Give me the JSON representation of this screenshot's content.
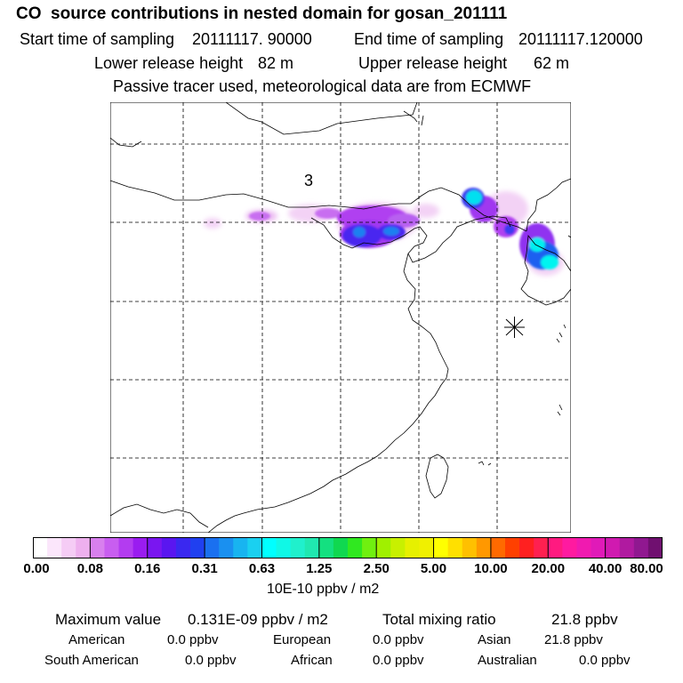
{
  "header": {
    "title": "CO  source contributions in nested domain for gosan_201111",
    "start_label": "Start time of sampling",
    "start_value": "20111117. 90000",
    "end_label": "End time of sampling",
    "end_value": "20111117.120000",
    "lower_label": "Lower release height",
    "lower_value": "82 m",
    "upper_label": "Upper release height",
    "upper_value": "62 m",
    "note": "Passive tracer used, meteorological data are from ECMWF"
  },
  "map": {
    "region_label": "3",
    "receptor_marker": "asterisk-icon"
  },
  "colorbar": {
    "unit": "10E-10 ppbv / m2",
    "tick_labels": [
      "0.00",
      "0.08",
      "0.16",
      "0.31",
      "0.63",
      "1.25",
      "2.50",
      "5.00",
      "10.00",
      "20.00",
      "40.00",
      "80.00"
    ],
    "colors": [
      "#ffffff",
      "#fbe6fb",
      "#f5ccf5",
      "#eeb0ee",
      "#d880ee",
      "#c85ef0",
      "#b33cf0",
      "#9a1cf0",
      "#7a16f0",
      "#5a16f0",
      "#3a28f0",
      "#2040f0",
      "#1a70f0",
      "#1a90f0",
      "#18b4f0",
      "#1ad0f0",
      "#00ffff",
      "#10f8e6",
      "#20f0cc",
      "#20e8b0",
      "#14e080",
      "#10d850",
      "#30e820",
      "#70f010",
      "#a0f000",
      "#c8f000",
      "#e6f000",
      "#f0f000",
      "#ffff00",
      "#ffe000",
      "#ffc000",
      "#ff9800",
      "#ff6a00",
      "#ff4000",
      "#ff2020",
      "#ff2050",
      "#ff1a80",
      "#ff1aa0",
      "#f01ab0",
      "#e01ab8",
      "#d01ab0",
      "#b01aa0",
      "#901890",
      "#701070"
    ]
  },
  "stats": {
    "max_label": "Maximum value",
    "max_value": "0.131E-09 ppbv / m2",
    "total_label": "Total mixing ratio",
    "total_value": "21.8 ppbv",
    "american_label": "American",
    "american_value": "0.0 ppbv",
    "european_label": "European",
    "european_value": "0.0 ppbv",
    "asian_label": "Asian",
    "asian_value": "21.8 ppbv",
    "south_american_label": "South American",
    "south_american_value": "0.0 ppbv",
    "african_label": "African",
    "african_value": "0.0 ppbv",
    "australian_label": "Australian",
    "australian_value": "0.0 ppbv"
  }
}
